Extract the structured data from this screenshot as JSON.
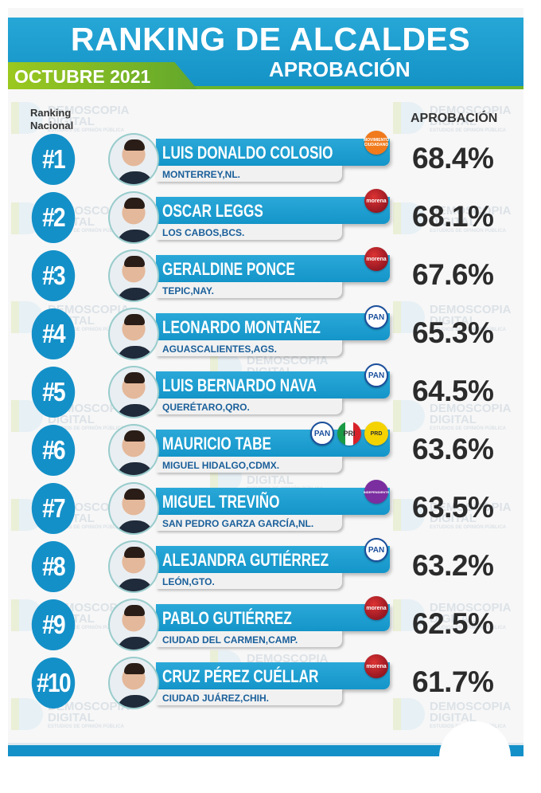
{
  "header": {
    "title": "RANKING DE ALCALDES",
    "subtitle": "APROBACIÓN",
    "period": "OCTUBRE 2021"
  },
  "columns": {
    "rank": "Ranking Nacional",
    "approval": "APROBACIÓN"
  },
  "watermark": {
    "line1": "DEMOSCOPIA",
    "line2": "DIGITAL",
    "line3": "ESTUDIOS DE OPINIÓN PÚBLICA"
  },
  "colors": {
    "primary": "#1490c8",
    "accent": "#6bb52b",
    "mc": "#f07a1c",
    "morena": "#b01e2a",
    "pan": "#1a4f9c",
    "independiente": "#7b2ea0",
    "prd": "#f4d300"
  },
  "rows": [
    {
      "rank": "#1",
      "name": "LUIS DONALDO COLOSIO",
      "city": "MONTERREY,NL.",
      "approval": "68.4%",
      "parties": [
        {
          "id": "mc",
          "label": "MOVIMIENTO CIUDADANO"
        }
      ]
    },
    {
      "rank": "#2",
      "name": "OSCAR LEGGS",
      "city": "LOS CABOS,BCS.",
      "approval": "68.1%",
      "parties": [
        {
          "id": "morena",
          "label": "morena"
        }
      ]
    },
    {
      "rank": "#3",
      "name": "GERALDINE PONCE",
      "city": "TEPIC,NAY.",
      "approval": "67.6%",
      "parties": [
        {
          "id": "morena",
          "label": "morena"
        }
      ]
    },
    {
      "rank": "#4",
      "name": "LEONARDO MONTAÑEZ",
      "city": "AGUASCALIENTES,AGS.",
      "approval": "65.3%",
      "parties": [
        {
          "id": "pan",
          "label": "PAN"
        }
      ]
    },
    {
      "rank": "#5",
      "name": "LUIS BERNARDO NAVA",
      "city": "QUERÉTARO,QRO.",
      "approval": "64.5%",
      "parties": [
        {
          "id": "pan",
          "label": "PAN"
        }
      ]
    },
    {
      "rank": "#6",
      "name": "MAURICIO TABE",
      "city": "MIGUEL HIDALGO,CDMX.",
      "approval": "63.6%",
      "parties": [
        {
          "id": "pan",
          "label": "PAN"
        },
        {
          "id": "pri",
          "label": "PRI"
        },
        {
          "id": "prd",
          "label": "PRD"
        }
      ]
    },
    {
      "rank": "#7",
      "name": "MIGUEL TREVIÑO",
      "city": "SAN PEDRO GARZA GARCÍA,NL.",
      "approval": "63.5%",
      "parties": [
        {
          "id": "independiente",
          "label": "INDEPENDIENTE"
        }
      ]
    },
    {
      "rank": "#8",
      "name": "ALEJANDRA GUTIÉRREZ",
      "city": "LEÓN,GTO.",
      "approval": "63.2%",
      "parties": [
        {
          "id": "pan",
          "label": "PAN"
        }
      ]
    },
    {
      "rank": "#9",
      "name": "PABLO GUTIÉRREZ",
      "city": "CIUDAD DEL CARMEN,CAMP.",
      "approval": "62.5%",
      "parties": [
        {
          "id": "morena",
          "label": "morena"
        }
      ]
    },
    {
      "rank": "#10",
      "name": "CRUZ PÉREZ CUÉLLAR",
      "city": "CIUDAD JUÁREZ,CHIH.",
      "approval": "61.7%",
      "parties": [
        {
          "id": "morena",
          "label": "morena"
        }
      ]
    }
  ]
}
